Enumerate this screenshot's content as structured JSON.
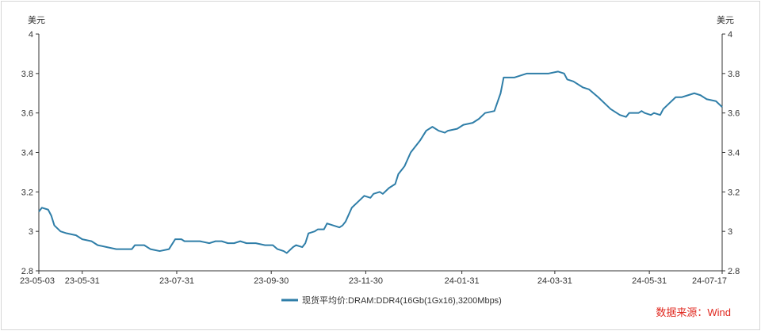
{
  "chart_data": {
    "type": "line",
    "y_unit_left": "美元",
    "y_unit_right": "美元",
    "ylim": [
      2.8,
      4
    ],
    "yticks": [
      "2.8",
      "3",
      "3.2",
      "3.4",
      "3.6",
      "3.8",
      "4"
    ],
    "xlim": [
      "2023-05-03",
      "2024-07-17"
    ],
    "xticks": [
      {
        "date": "2023-05-03",
        "label": "23-05-03"
      },
      {
        "date": "2023-05-31",
        "label": "23-05-31"
      },
      {
        "date": "2023-07-31",
        "label": "23-07-31"
      },
      {
        "date": "2023-09-30",
        "label": "23-09-30"
      },
      {
        "date": "2023-11-30",
        "label": "23-11-30"
      },
      {
        "date": "2024-01-31",
        "label": "24-01-31"
      },
      {
        "date": "2024-03-31",
        "label": "24-03-31"
      },
      {
        "date": "2024-05-31",
        "label": "24-05-31"
      },
      {
        "date": "2024-07-17",
        "label": "24-07-17"
      }
    ],
    "grid": false,
    "legend_position": "bottom-center",
    "series": [
      {
        "name": "现货平均价:DRAM:DDR4(16Gb(1Gx16),3200Mbps)",
        "color": "#2f7ea8",
        "points": [
          [
            "2023-05-03",
            3.1
          ],
          [
            "2023-05-05",
            3.12
          ],
          [
            "2023-05-09",
            3.11
          ],
          [
            "2023-05-11",
            3.08
          ],
          [
            "2023-05-13",
            3.03
          ],
          [
            "2023-05-17",
            3.0
          ],
          [
            "2023-05-21",
            2.99
          ],
          [
            "2023-05-27",
            2.98
          ],
          [
            "2023-05-31",
            2.96
          ],
          [
            "2023-06-06",
            2.95
          ],
          [
            "2023-06-10",
            2.93
          ],
          [
            "2023-06-16",
            2.92
          ],
          [
            "2023-06-22",
            2.91
          ],
          [
            "2023-07-02",
            2.91
          ],
          [
            "2023-07-04",
            2.93
          ],
          [
            "2023-07-10",
            2.93
          ],
          [
            "2023-07-14",
            2.91
          ],
          [
            "2023-07-20",
            2.9
          ],
          [
            "2023-07-26",
            2.91
          ],
          [
            "2023-07-30",
            2.96
          ],
          [
            "2023-08-03",
            2.96
          ],
          [
            "2023-08-05",
            2.95
          ],
          [
            "2023-08-15",
            2.95
          ],
          [
            "2023-08-21",
            2.94
          ],
          [
            "2023-08-25",
            2.95
          ],
          [
            "2023-08-29",
            2.95
          ],
          [
            "2023-09-02",
            2.94
          ],
          [
            "2023-09-06",
            2.94
          ],
          [
            "2023-09-10",
            2.95
          ],
          [
            "2023-09-14",
            2.94
          ],
          [
            "2023-09-20",
            2.94
          ],
          [
            "2023-09-26",
            2.93
          ],
          [
            "2023-10-01",
            2.93
          ],
          [
            "2023-10-04",
            2.91
          ],
          [
            "2023-10-08",
            2.9
          ],
          [
            "2023-10-10",
            2.89
          ],
          [
            "2023-10-14",
            2.92
          ],
          [
            "2023-10-16",
            2.93
          ],
          [
            "2023-10-20",
            2.92
          ],
          [
            "2023-10-22",
            2.94
          ],
          [
            "2023-10-24",
            2.99
          ],
          [
            "2023-10-28",
            3.0
          ],
          [
            "2023-10-30",
            3.01
          ],
          [
            "2023-11-03",
            3.01
          ],
          [
            "2023-11-05",
            3.04
          ],
          [
            "2023-11-09",
            3.03
          ],
          [
            "2023-11-13",
            3.02
          ],
          [
            "2023-11-15",
            3.03
          ],
          [
            "2023-11-17",
            3.05
          ],
          [
            "2023-11-21",
            3.12
          ],
          [
            "2023-11-25",
            3.15
          ],
          [
            "2023-11-29",
            3.18
          ],
          [
            "2023-12-03",
            3.17
          ],
          [
            "2023-12-05",
            3.19
          ],
          [
            "2023-12-09",
            3.2
          ],
          [
            "2023-12-11",
            3.19
          ],
          [
            "2023-12-15",
            3.22
          ],
          [
            "2023-12-19",
            3.24
          ],
          [
            "2023-12-21",
            3.29
          ],
          [
            "2023-12-25",
            3.33
          ],
          [
            "2023-12-29",
            3.4
          ],
          [
            "2024-01-04",
            3.46
          ],
          [
            "2024-01-08",
            3.51
          ],
          [
            "2024-01-12",
            3.53
          ],
          [
            "2024-01-16",
            3.51
          ],
          [
            "2024-01-20",
            3.5
          ],
          [
            "2024-01-22",
            3.51
          ],
          [
            "2024-01-28",
            3.52
          ],
          [
            "2024-02-01",
            3.54
          ],
          [
            "2024-02-07",
            3.55
          ],
          [
            "2024-02-11",
            3.57
          ],
          [
            "2024-02-15",
            3.6
          ],
          [
            "2024-02-21",
            3.61
          ],
          [
            "2024-02-25",
            3.7
          ],
          [
            "2024-02-27",
            3.78
          ],
          [
            "2024-03-05",
            3.78
          ],
          [
            "2024-03-09",
            3.79
          ],
          [
            "2024-03-13",
            3.8
          ],
          [
            "2024-03-27",
            3.8
          ],
          [
            "2024-04-02",
            3.81
          ],
          [
            "2024-04-06",
            3.8
          ],
          [
            "2024-04-08",
            3.77
          ],
          [
            "2024-04-12",
            3.76
          ],
          [
            "2024-04-18",
            3.73
          ],
          [
            "2024-04-22",
            3.72
          ],
          [
            "2024-04-28",
            3.68
          ],
          [
            "2024-05-02",
            3.65
          ],
          [
            "2024-05-06",
            3.62
          ],
          [
            "2024-05-12",
            3.59
          ],
          [
            "2024-05-16",
            3.58
          ],
          [
            "2024-05-18",
            3.6
          ],
          [
            "2024-05-24",
            3.6
          ],
          [
            "2024-05-26",
            3.61
          ],
          [
            "2024-05-28",
            3.6
          ],
          [
            "2024-06-01",
            3.59
          ],
          [
            "2024-06-03",
            3.6
          ],
          [
            "2024-06-07",
            3.59
          ],
          [
            "2024-06-09",
            3.62
          ],
          [
            "2024-06-13",
            3.65
          ],
          [
            "2024-06-17",
            3.68
          ],
          [
            "2024-06-21",
            3.68
          ],
          [
            "2024-06-25",
            3.69
          ],
          [
            "2024-06-29",
            3.7
          ],
          [
            "2024-07-03",
            3.69
          ],
          [
            "2024-07-07",
            3.67
          ],
          [
            "2024-07-13",
            3.66
          ],
          [
            "2024-07-17",
            3.63
          ]
        ]
      }
    ],
    "source": "数据来源：Wind"
  }
}
